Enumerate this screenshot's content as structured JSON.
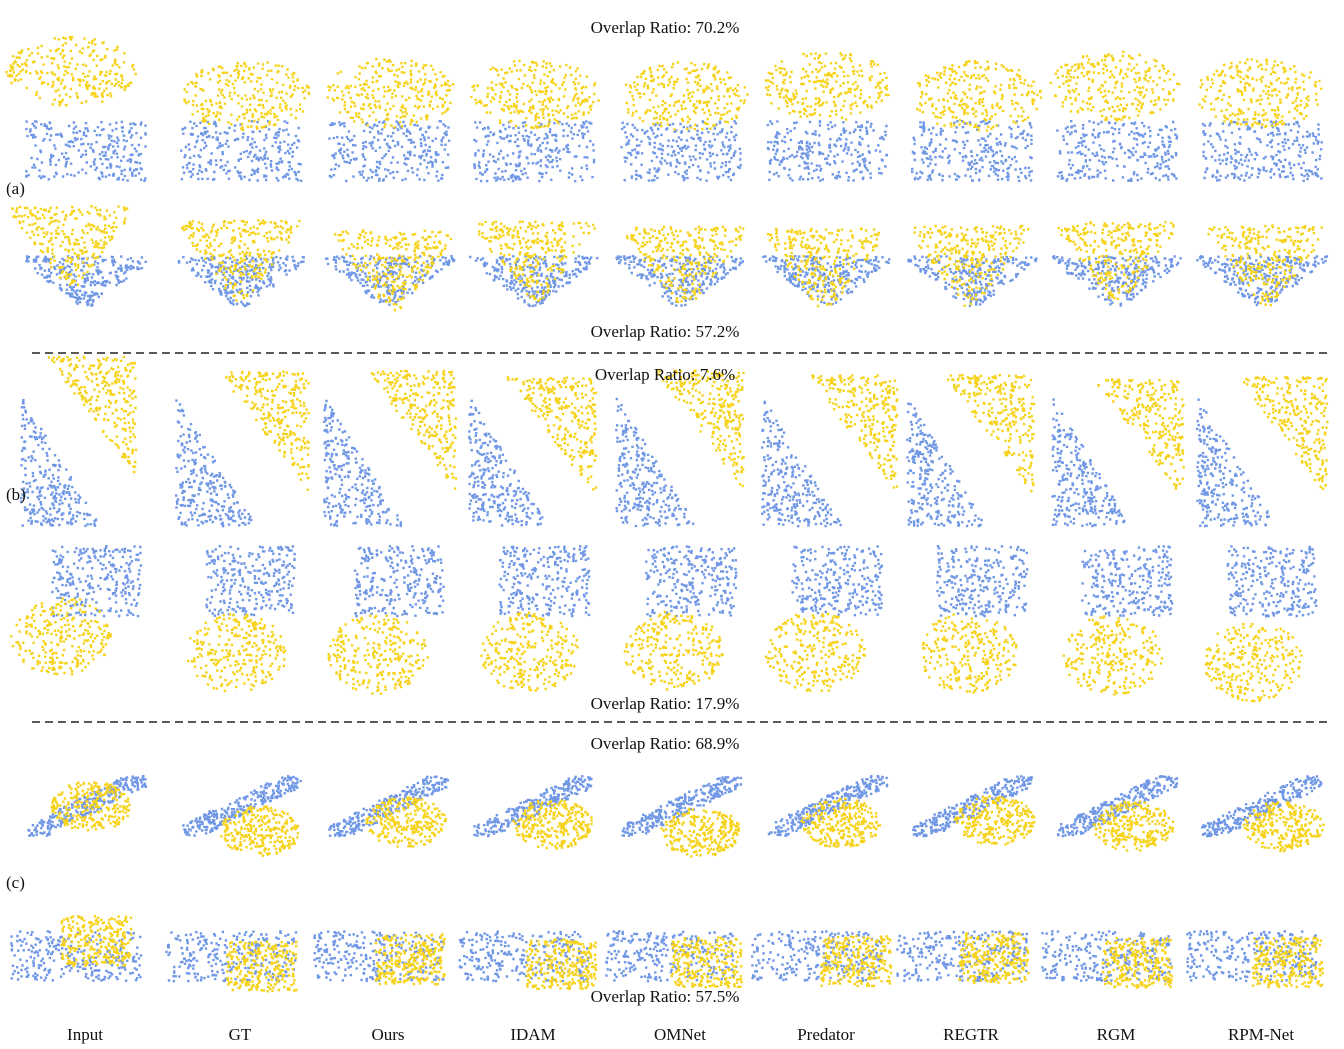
{
  "overlap_ratios": [
    "Overlap Ratio: 70.2%",
    "Overlap Ratio: 57.2%",
    "Overlap Ratio: 7.6%",
    "Overlap Ratio: 17.9%",
    "Overlap Ratio: 68.9%",
    "Overlap Ratio: 57.5%"
  ],
  "groups": [
    "(a)",
    "(b)",
    "(c)"
  ],
  "methods": [
    "Input",
    "GT",
    "Ours",
    "IDAM",
    "OMNet",
    "Predator",
    "REGTR",
    "RGM",
    "RPM-Net"
  ]
}
